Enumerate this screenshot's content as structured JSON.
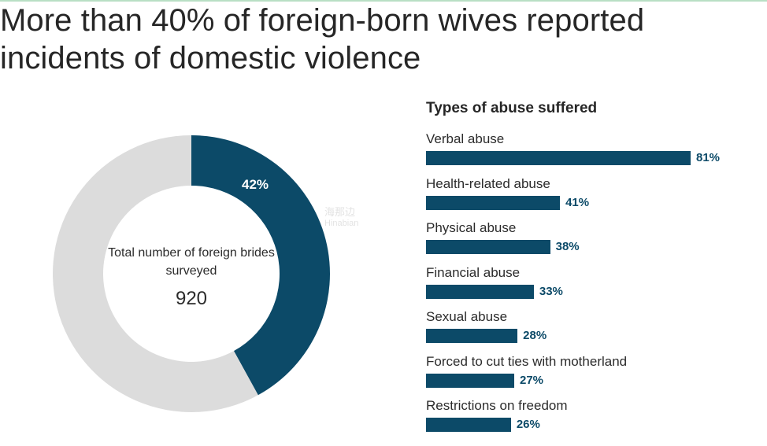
{
  "headline": "More than 40% of foreign-born wives reported incidents of domestic violence",
  "colors": {
    "accent": "#0c4a68",
    "donut_rest": "#dcdcdc",
    "top_rule": "#b9dfc4"
  },
  "watermark": {
    "line1": "海那边",
    "line2": "Hinabian"
  },
  "chart_data": [
    {
      "type": "pie",
      "donut": true,
      "slices": [
        {
          "label": "42%",
          "value": 42,
          "color": "#0c4a68"
        },
        {
          "value": 58,
          "color": "#dcdcdc"
        }
      ],
      "center_label": "Total number of foreign brides surveyed",
      "center_value": "920"
    },
    {
      "type": "bar",
      "orientation": "horizontal",
      "title": "Types of abuse suffered",
      "categories": [
        "Verbal abuse",
        "Health-related abuse",
        "Physical abuse",
        "Financial abuse",
        "Sexual abuse",
        "Forced to cut ties with motherland",
        "Restrictions on freedom"
      ],
      "values": [
        81,
        41,
        38,
        33,
        28,
        27,
        26
      ],
      "value_labels": [
        "81%",
        "41%",
        "38%",
        "33%",
        "28%",
        "27%",
        "26%"
      ],
      "xlim": [
        0,
        100
      ],
      "grid": false,
      "color": "#0c4a68"
    }
  ]
}
